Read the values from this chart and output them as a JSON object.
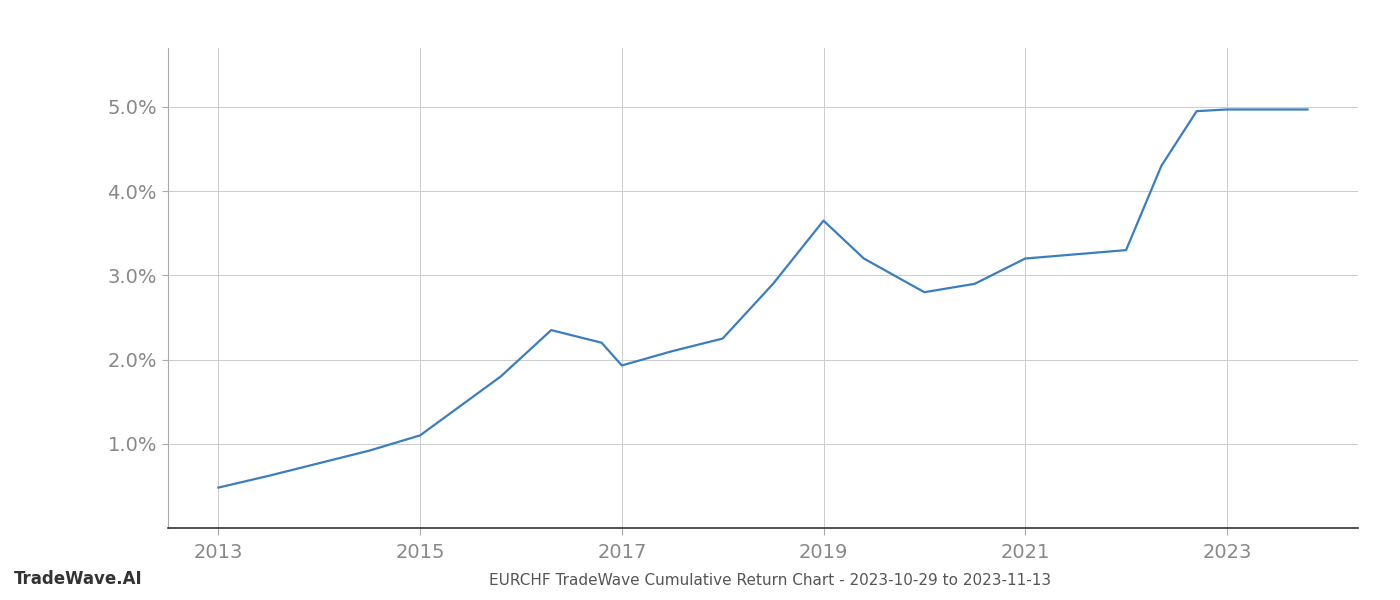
{
  "x_years": [
    2013,
    2013.5,
    2014,
    2014.5,
    2015,
    2015.8,
    2016.3,
    2016.8,
    2017,
    2017.5,
    2018,
    2018.5,
    2019,
    2019.4,
    2020,
    2020.5,
    2021,
    2021.5,
    2022,
    2022.35,
    2022.7,
    2023,
    2023.8
  ],
  "y_values": [
    0.0048,
    0.0062,
    0.0077,
    0.0092,
    0.011,
    0.018,
    0.0235,
    0.022,
    0.0193,
    0.021,
    0.0225,
    0.029,
    0.0365,
    0.032,
    0.028,
    0.029,
    0.032,
    0.0325,
    0.033,
    0.043,
    0.0495,
    0.0497,
    0.0497
  ],
  "line_color": "#3a7ebf",
  "line_width": 1.6,
  "background_color": "#ffffff",
  "grid_color": "#cccccc",
  "title": "EURCHF TradeWave Cumulative Return Chart - 2023-10-29 to 2023-11-13",
  "footer_left": "TradeWave.AI",
  "ytick_labels": [
    "1.0%",
    "2.0%",
    "3.0%",
    "4.0%",
    "5.0%"
  ],
  "ytick_values": [
    0.01,
    0.02,
    0.03,
    0.04,
    0.05
  ],
  "xlim": [
    2012.5,
    2024.3
  ],
  "ylim": [
    0.0,
    0.057
  ],
  "xtick_years": [
    2013,
    2015,
    2017,
    2019,
    2021,
    2023
  ]
}
